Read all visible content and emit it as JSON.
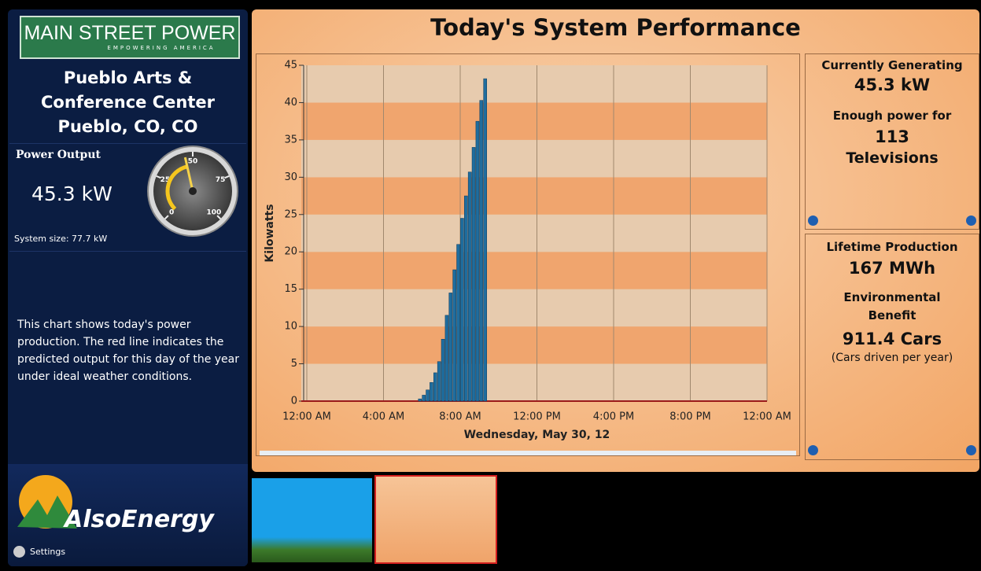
{
  "header": {
    "brand": "MAIN STREET POWER",
    "tagline": "EMPOWERING AMERICA"
  },
  "site": {
    "name_lines": [
      "Pueblo Arts &",
      "Conference Center"
    ],
    "location": "Pueblo, CO, CO"
  },
  "power": {
    "label": "Power Output",
    "value": "45.3 kW",
    "system_size": "System size: 77.7 kW",
    "gauge": {
      "value": 45.3,
      "lim": [
        0,
        100
      ],
      "ticks": [
        0,
        25,
        50,
        75,
        100
      ]
    }
  },
  "description": "This chart shows today's power production.  The red line indicates the predicted output for this day of the year under ideal weather conditions.",
  "footer": {
    "brand": "AlsoEnergy",
    "settings": "Settings"
  },
  "chart_data": {
    "type": "bar",
    "title": "Today's System Performance",
    "x_label": "Wednesday, May 30, 12",
    "y_label": "Kilowatts",
    "x": [
      5.8,
      6.0,
      6.2,
      6.4,
      6.6,
      6.8,
      7.0,
      7.2,
      7.4,
      7.6,
      7.8,
      8.0,
      8.2,
      8.4,
      8.6,
      8.8,
      9.0,
      9.2
    ],
    "bar_width": 0.2,
    "values": [
      0.3,
      0.8,
      1.5,
      2.5,
      3.8,
      5.3,
      8.3,
      11.5,
      14.5,
      17.6,
      21,
      24.5,
      27.5,
      30.7,
      34,
      37.5,
      40.3,
      43.2
    ],
    "color": "#1f6d9e",
    "xlim": [
      0,
      24
    ],
    "xticks": [
      {
        "value": 0,
        "label": "12:00 AM"
      },
      {
        "value": 4,
        "label": "4:00 AM"
      },
      {
        "value": 8,
        "label": "8:00 AM"
      },
      {
        "value": 12,
        "label": "12:00 PM"
      },
      {
        "value": 16,
        "label": "4:00 PM"
      },
      {
        "value": 20,
        "label": "8:00 PM"
      },
      {
        "value": 24,
        "label": "12:00 AM"
      }
    ],
    "ylim": [
      0,
      45
    ],
    "yticks": [
      0,
      5,
      10,
      15,
      20,
      25,
      30,
      35,
      40,
      45
    ],
    "grid": true
  },
  "panels": {
    "current": {
      "heading": "Currently Generating",
      "value": "45.3 kW",
      "sub": "Enough power for",
      "count": "113",
      "unit": "Televisions"
    },
    "lifetime": {
      "heading": "Lifetime Production",
      "value": "167 MWh",
      "sub_lines": [
        "Environmental",
        "Benefit"
      ],
      "count": "911.4 Cars",
      "note": "(Cars driven per year)"
    }
  }
}
